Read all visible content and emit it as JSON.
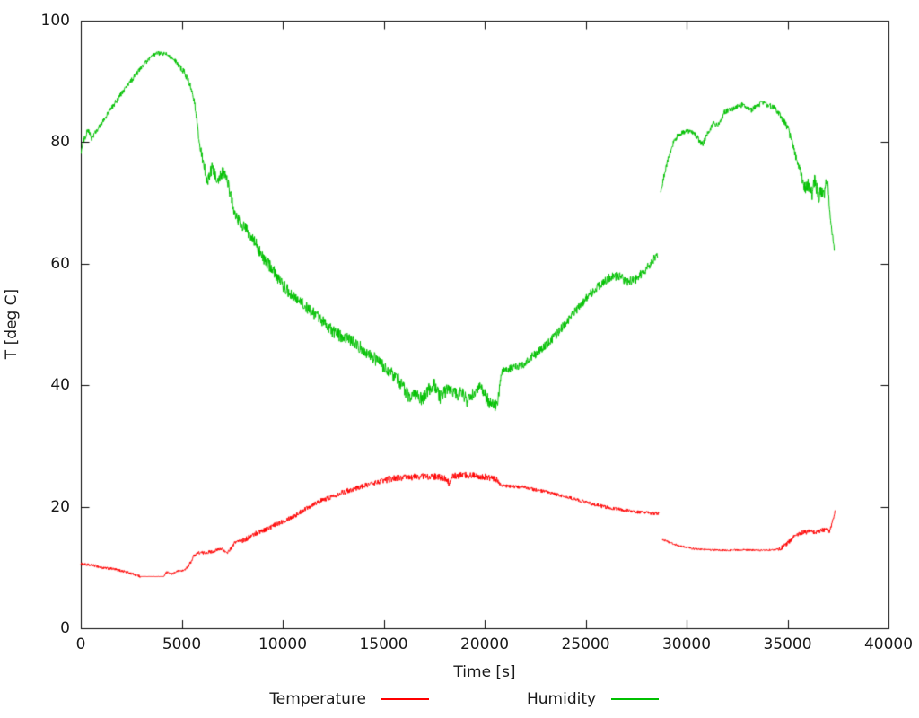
{
  "chart_data": {
    "type": "line",
    "title": "",
    "xlabel": "Time [s]",
    "ylabel": "T [deg C]",
    "xlim": [
      0,
      40000
    ],
    "ylim": [
      0,
      100
    ],
    "xticks": [
      0,
      5000,
      10000,
      15000,
      20000,
      25000,
      30000,
      35000,
      40000
    ],
    "xtick_labels": [
      "0",
      "5000",
      "10000",
      "15000",
      "20000",
      "25000",
      "30000",
      "35000",
      "40000"
    ],
    "yticks": [
      0,
      20,
      40,
      60,
      80,
      100
    ],
    "ytick_labels": [
      "0",
      "20",
      "40",
      "60",
      "80",
      "100"
    ],
    "grid": false,
    "legend_position": "below-plot",
    "border_color": "#000000",
    "text_color": "#1a1a1a",
    "series": [
      {
        "name": "Temperature",
        "color": "#ff0000",
        "style": "noisy-line",
        "gaps": [
          [
            28650,
            28800
          ]
        ],
        "noise_segments": [
          [
            0,
            2950,
            0.22
          ],
          [
            2950,
            4100,
            0.02
          ],
          [
            4100,
            5300,
            0.18
          ],
          [
            5300,
            8000,
            0.28
          ],
          [
            8000,
            15000,
            0.42
          ],
          [
            15000,
            20600,
            0.55
          ],
          [
            20600,
            28650,
            0.3
          ],
          [
            28800,
            30500,
            0.18
          ],
          [
            30500,
            34500,
            0.15
          ],
          [
            34500,
            36900,
            0.38
          ],
          [
            36900,
            37350,
            0.3
          ]
        ],
        "keypoints": [
          [
            0,
            10.6
          ],
          [
            400,
            10.4
          ],
          [
            700,
            10.3
          ],
          [
            1100,
            9.9
          ],
          [
            1500,
            9.8
          ],
          [
            1800,
            9.6
          ],
          [
            2200,
            9.3
          ],
          [
            2500,
            9.0
          ],
          [
            2800,
            8.7
          ],
          [
            2950,
            8.5
          ],
          [
            4100,
            8.5
          ],
          [
            4250,
            9.2
          ],
          [
            4500,
            8.9
          ],
          [
            4800,
            9.4
          ],
          [
            5100,
            9.5
          ],
          [
            5300,
            10.1
          ],
          [
            5450,
            10.9
          ],
          [
            5600,
            11.9
          ],
          [
            5750,
            12.4
          ],
          [
            6100,
            12.4
          ],
          [
            6500,
            12.6
          ],
          [
            7000,
            13.1
          ],
          [
            7200,
            12.3
          ],
          [
            7450,
            13.1
          ],
          [
            7650,
            14.2
          ],
          [
            8100,
            14.5
          ],
          [
            8500,
            15.3
          ],
          [
            8900,
            16.0
          ],
          [
            9300,
            16.4
          ],
          [
            9800,
            17.3
          ],
          [
            10200,
            17.9
          ],
          [
            10700,
            18.7
          ],
          [
            11100,
            19.6
          ],
          [
            11600,
            20.6
          ],
          [
            12100,
            21.2
          ],
          [
            12900,
            22.3
          ],
          [
            13600,
            23.0
          ],
          [
            14200,
            23.6
          ],
          [
            15000,
            24.3
          ],
          [
            15500,
            24.7
          ],
          [
            16200,
            24.8
          ],
          [
            16900,
            25.0
          ],
          [
            17600,
            24.9
          ],
          [
            18150,
            24.6
          ],
          [
            18250,
            23.4
          ],
          [
            18400,
            25.0
          ],
          [
            19000,
            25.2
          ],
          [
            19600,
            25.1
          ],
          [
            20200,
            24.8
          ],
          [
            20600,
            24.4
          ],
          [
            20800,
            23.6
          ],
          [
            21200,
            23.3
          ],
          [
            22000,
            23.2
          ],
          [
            22600,
            22.7
          ],
          [
            23300,
            22.2
          ],
          [
            23900,
            21.7
          ],
          [
            24700,
            21.0
          ],
          [
            25400,
            20.4
          ],
          [
            26000,
            19.9
          ],
          [
            26600,
            19.6
          ],
          [
            27000,
            19.4
          ],
          [
            27600,
            19.1
          ],
          [
            28200,
            18.9
          ],
          [
            28650,
            18.9
          ],
          [
            28800,
            14.6
          ],
          [
            29100,
            14.2
          ],
          [
            29500,
            13.7
          ],
          [
            30000,
            13.3
          ],
          [
            30500,
            13.0
          ],
          [
            31200,
            12.9
          ],
          [
            32000,
            12.8
          ],
          [
            32800,
            12.9
          ],
          [
            33600,
            12.8
          ],
          [
            34300,
            12.9
          ],
          [
            34700,
            13.2
          ],
          [
            35100,
            14.3
          ],
          [
            35400,
            15.3
          ],
          [
            35700,
            15.7
          ],
          [
            36100,
            15.9
          ],
          [
            36400,
            15.8
          ],
          [
            36700,
            16.1
          ],
          [
            36950,
            16.3
          ],
          [
            37080,
            15.8
          ],
          [
            37200,
            17.2
          ],
          [
            37350,
            19.2
          ]
        ]
      },
      {
        "name": "Humidity",
        "color": "#00c000",
        "style": "noisy-line",
        "gaps": [
          [
            28580,
            28710
          ]
        ],
        "noise_segments": [
          [
            0,
            3000,
            0.45
          ],
          [
            3000,
            4600,
            0.35
          ],
          [
            4600,
            5900,
            0.5
          ],
          [
            5900,
            7600,
            1.0
          ],
          [
            7600,
            15500,
            1.05
          ],
          [
            15500,
            20700,
            1.15
          ],
          [
            20700,
            22300,
            0.7
          ],
          [
            22300,
            28580,
            0.75
          ],
          [
            28710,
            30200,
            0.4
          ],
          [
            30200,
            34500,
            0.45
          ],
          [
            34500,
            35700,
            0.6
          ],
          [
            35700,
            37000,
            1.2
          ],
          [
            37000,
            37330,
            0.7
          ]
        ],
        "keypoints": [
          [
            0,
            78.2
          ],
          [
            150,
            80.3
          ],
          [
            360,
            82.0
          ],
          [
            530,
            80.6
          ],
          [
            900,
            82.3
          ],
          [
            1330,
            84.6
          ],
          [
            2000,
            87.9
          ],
          [
            2670,
            90.8
          ],
          [
            3110,
            92.7
          ],
          [
            3560,
            94.2
          ],
          [
            3800,
            94.6
          ],
          [
            4300,
            94.4
          ],
          [
            4670,
            93.3
          ],
          [
            5110,
            91.6
          ],
          [
            5420,
            89.3
          ],
          [
            5600,
            87.1
          ],
          [
            5730,
            84.2
          ],
          [
            5820,
            81.2
          ],
          [
            5910,
            79.3
          ],
          [
            6000,
            78.0
          ],
          [
            6270,
            73.1
          ],
          [
            6490,
            75.6
          ],
          [
            6800,
            73.8
          ],
          [
            7070,
            75.3
          ],
          [
            7330,
            72.7
          ],
          [
            7640,
            67.9
          ],
          [
            7910,
            66.7
          ],
          [
            8220,
            65.3
          ],
          [
            8670,
            63.2
          ],
          [
            9110,
            60.5
          ],
          [
            9560,
            58.8
          ],
          [
            10000,
            56.4
          ],
          [
            10580,
            54.6
          ],
          [
            11110,
            52.9
          ],
          [
            11640,
            51.7
          ],
          [
            12090,
            49.9
          ],
          [
            12670,
            48.4
          ],
          [
            13330,
            47.5
          ],
          [
            14000,
            45.8
          ],
          [
            14670,
            44.0
          ],
          [
            15200,
            42.5
          ],
          [
            15780,
            40.6
          ],
          [
            16200,
            38.3
          ],
          [
            16700,
            38.6
          ],
          [
            16900,
            37.4
          ],
          [
            17470,
            40.3
          ],
          [
            17800,
            38.0
          ],
          [
            18200,
            39.6
          ],
          [
            18500,
            38.4
          ],
          [
            18900,
            38.8
          ],
          [
            19100,
            37.4
          ],
          [
            19500,
            38.8
          ],
          [
            19780,
            39.9
          ],
          [
            20100,
            37.7
          ],
          [
            20360,
            36.9
          ],
          [
            20650,
            36.8
          ],
          [
            20800,
            41.3
          ],
          [
            20900,
            42.4
          ],
          [
            21300,
            42.7
          ],
          [
            21900,
            43.4
          ],
          [
            22360,
            44.7
          ],
          [
            22890,
            46.1
          ],
          [
            23560,
            48.4
          ],
          [
            24130,
            50.6
          ],
          [
            24670,
            52.9
          ],
          [
            25110,
            54.6
          ],
          [
            25690,
            56.4
          ],
          [
            26130,
            57.6
          ],
          [
            26670,
            58.0
          ],
          [
            27020,
            56.9
          ],
          [
            27420,
            57.3
          ],
          [
            27780,
            58.3
          ],
          [
            28090,
            59.5
          ],
          [
            28440,
            61.0
          ],
          [
            28580,
            61.6
          ],
          [
            28710,
            71.5
          ],
          [
            28890,
            74.6
          ],
          [
            29110,
            77.5
          ],
          [
            29330,
            79.7
          ],
          [
            29560,
            81.1
          ],
          [
            29780,
            81.5
          ],
          [
            30000,
            81.8
          ],
          [
            30440,
            81.2
          ],
          [
            30670,
            80.0
          ],
          [
            30800,
            79.6
          ],
          [
            31020,
            81.2
          ],
          [
            31330,
            83.1
          ],
          [
            31560,
            82.7
          ],
          [
            31870,
            84.9
          ],
          [
            32220,
            85.4
          ],
          [
            32760,
            86.1
          ],
          [
            33200,
            85.2
          ],
          [
            33690,
            86.4
          ],
          [
            34000,
            86.1
          ],
          [
            34360,
            85.6
          ],
          [
            34800,
            83.4
          ],
          [
            35020,
            82.2
          ],
          [
            35240,
            79.7
          ],
          [
            35470,
            76.8
          ],
          [
            35690,
            74.6
          ],
          [
            35870,
            72.4
          ],
          [
            36090,
            73.1
          ],
          [
            36220,
            71.6
          ],
          [
            36360,
            73.8
          ],
          [
            36530,
            70.9
          ],
          [
            36670,
            72.1
          ],
          [
            36800,
            71.2
          ],
          [
            36980,
            74.1
          ],
          [
            37110,
            67.5
          ],
          [
            37240,
            64.5
          ],
          [
            37330,
            62.3
          ]
        ]
      }
    ]
  }
}
